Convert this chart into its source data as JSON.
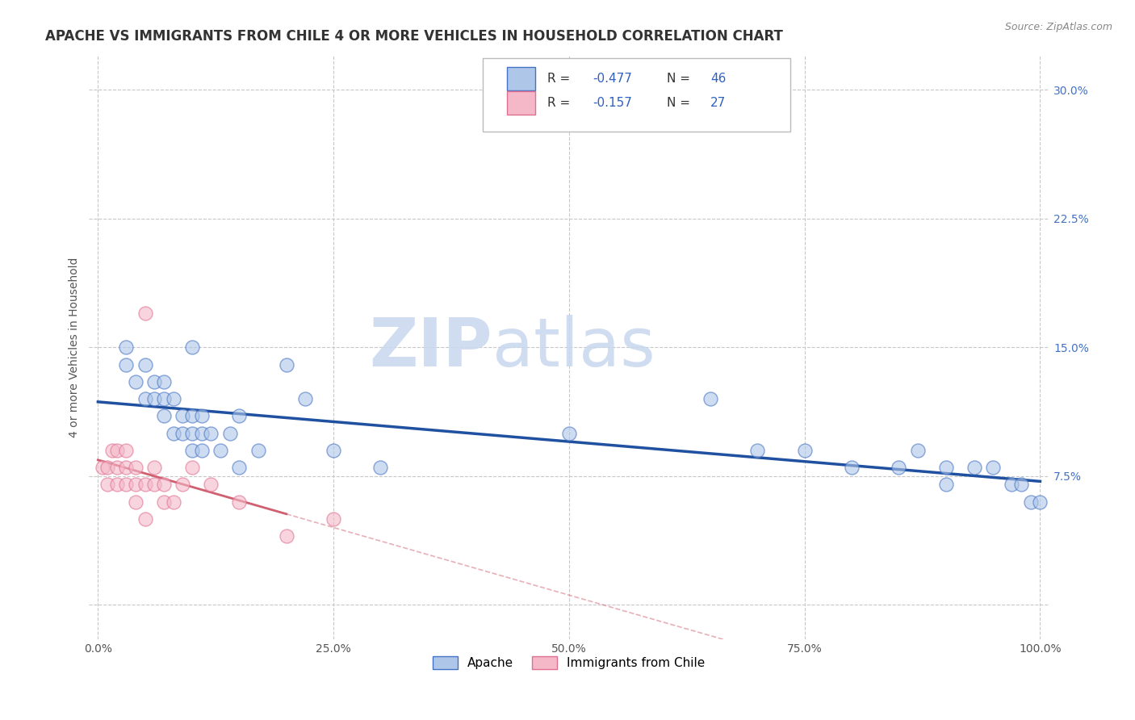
{
  "title": "APACHE VS IMMIGRANTS FROM CHILE 4 OR MORE VEHICLES IN HOUSEHOLD CORRELATION CHART",
  "source": "Source: ZipAtlas.com",
  "ylabel": "4 or more Vehicles in Household",
  "xlim": [
    -1,
    101
  ],
  "ylim": [
    -2,
    32
  ],
  "xticks": [
    0,
    25,
    50,
    75,
    100
  ],
  "xtick_labels": [
    "0.0%",
    "25.0%",
    "50.0%",
    "75.0%",
    "100.0%"
  ],
  "ytick_positions": [
    0,
    7.5,
    15,
    22.5,
    30
  ],
  "ytick_labels": [
    "",
    "7.5%",
    "15.0%",
    "22.5%",
    "30.0%"
  ],
  "apache_color": "#aec6e8",
  "apache_edge_color": "#4472C4",
  "chile_color": "#f4b8c8",
  "chile_edge_color": "#e07090",
  "apache_line_color": "#2050a0",
  "chile_line_color": "#d06070",
  "watermark_zip": "ZIP",
  "watermark_atlas": "atlas",
  "legend_r_apache": "-0.477",
  "legend_n_apache": "46",
  "legend_r_chile": "-0.157",
  "legend_n_chile": "27",
  "legend_label_apache": "Apache",
  "legend_label_chile": "Immigrants from Chile",
  "apache_x": [
    3,
    3,
    4,
    5,
    5,
    6,
    6,
    7,
    7,
    7,
    8,
    8,
    9,
    9,
    10,
    10,
    10,
    10,
    11,
    11,
    11,
    12,
    13,
    14,
    15,
    15,
    17,
    20,
    22,
    25,
    30,
    50,
    65,
    70,
    75,
    80,
    85,
    87,
    90,
    90,
    93,
    95,
    97,
    98,
    99,
    100
  ],
  "apache_y": [
    14,
    15,
    13,
    12,
    14,
    12,
    13,
    11,
    12,
    13,
    10,
    12,
    10,
    11,
    9,
    10,
    11,
    15,
    9,
    10,
    11,
    10,
    9,
    10,
    8,
    11,
    9,
    14,
    12,
    9,
    8,
    10,
    12,
    9,
    9,
    8,
    8,
    9,
    7,
    8,
    8,
    8,
    7,
    7,
    6,
    6
  ],
  "chile_x": [
    0.5,
    1,
    1,
    1.5,
    2,
    2,
    2,
    3,
    3,
    3,
    4,
    4,
    4,
    5,
    5,
    5,
    6,
    6,
    7,
    7,
    8,
    9,
    10,
    12,
    15,
    20,
    25
  ],
  "chile_y": [
    8,
    7,
    8,
    9,
    7,
    8,
    9,
    7,
    8,
    9,
    6,
    7,
    8,
    5,
    7,
    17,
    7,
    8,
    6,
    7,
    6,
    7,
    8,
    7,
    6,
    4,
    5
  ],
  "title_fontsize": 12,
  "axis_label_fontsize": 10,
  "tick_fontsize": 10,
  "background_color": "#ffffff",
  "grid_color": "#c8c8c8",
  "ytick_color": "#4472C4"
}
